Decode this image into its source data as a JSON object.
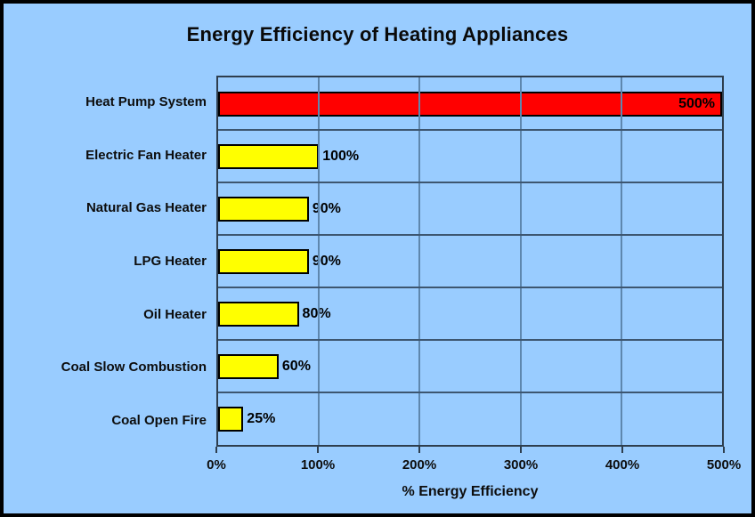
{
  "chart_data": {
    "type": "bar",
    "orientation": "horizontal",
    "title": "Energy Efficiency of Heating Appliances",
    "xlabel": "% Energy Efficiency",
    "ylabel": "",
    "xlim": [
      0,
      500
    ],
    "x_ticks": [
      "0%",
      "100%",
      "200%",
      "300%",
      "400%",
      "500%"
    ],
    "x_tick_values": [
      0,
      100,
      200,
      300,
      400,
      500
    ],
    "categories": [
      "Heat Pump System",
      "Electric Fan Heater",
      "Natural Gas Heater",
      "LPG Heater",
      "Oil Heater",
      "Coal Slow Combustion",
      "Coal Open Fire"
    ],
    "values": [
      500,
      100,
      90,
      90,
      80,
      60,
      25
    ],
    "value_labels": [
      "500%",
      "100%",
      "90%",
      "90%",
      "80%",
      "60%",
      "25%"
    ],
    "bar_colors": [
      "#FF0000",
      "#FFFF00",
      "#FFFF00",
      "#FFFF00",
      "#FFFF00",
      "#FFFF00",
      "#FFFF00"
    ],
    "grid": true,
    "legend": false
  },
  "colors": {
    "background": "#99CCFF",
    "outer_border": "#000000",
    "plot_border": "#2E3E4E",
    "grid_vertical": "#5E87AE",
    "grid_horizontal": "#3D5670",
    "bar_outline": "#000000",
    "text": "#0d0d0d"
  }
}
